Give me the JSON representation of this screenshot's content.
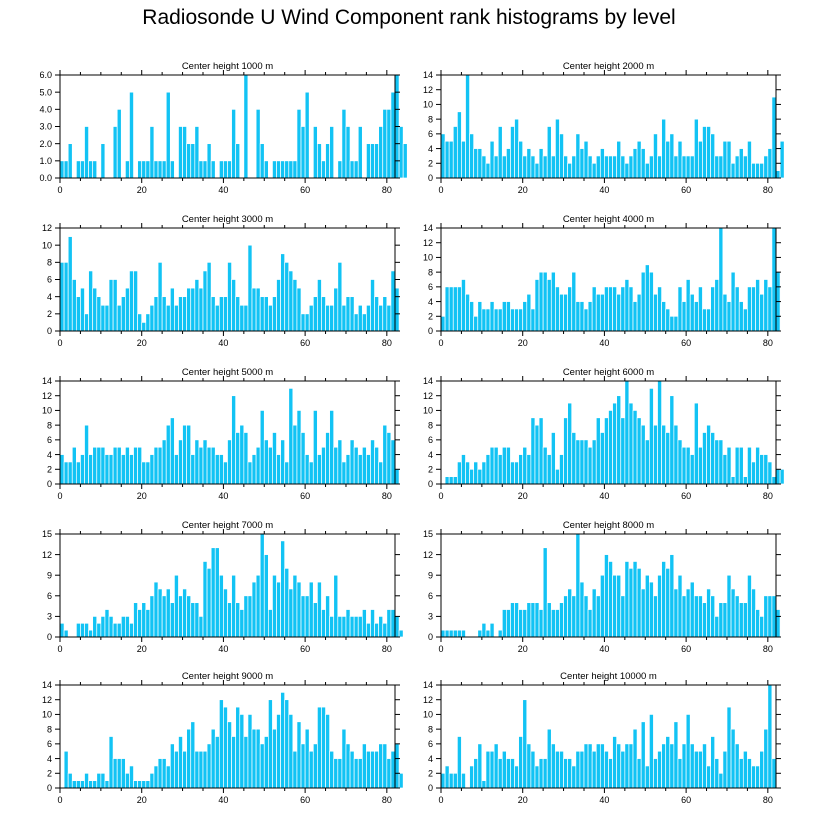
{
  "title": "Radiosonde U Wind Component rank histograms by level",
  "chart_data": [
    {
      "type": "bar",
      "title": "Center height 1000 m",
      "ylim": [
        0,
        6
      ],
      "yticks": [
        0,
        1,
        2,
        3,
        4,
        5,
        6
      ],
      "ytick_labels": [
        "0.0",
        "1.0",
        "2.0",
        "3.0",
        "4.0",
        "5.0",
        "6.0"
      ],
      "xlim": [
        0,
        82
      ],
      "xticks": [
        0,
        20,
        40,
        60,
        80
      ],
      "x_start": 0,
      "values": [
        1,
        1,
        2,
        0,
        1,
        1,
        3,
        1,
        1,
        0,
        2,
        0,
        0,
        3,
        4,
        0,
        1,
        5,
        0,
        1,
        1,
        1,
        3,
        1,
        1,
        1,
        5,
        1,
        0,
        3,
        3,
        2,
        2,
        3,
        1,
        1,
        2,
        1,
        0,
        1,
        1,
        1,
        4,
        2,
        0,
        6,
        0,
        0,
        4,
        2,
        1,
        0,
        1,
        1,
        1,
        1,
        1,
        1,
        4,
        3,
        5,
        0,
        3,
        2,
        1,
        2,
        3,
        0,
        1,
        4,
        3,
        1,
        1,
        3,
        0,
        2,
        2,
        2,
        3,
        4,
        4,
        5,
        6,
        3,
        2
      ]
    },
    {
      "type": "bar",
      "title": "Center height 2000 m",
      "ylim": [
        0,
        14
      ],
      "yticks": [
        0,
        2,
        4,
        6,
        8,
        10,
        12,
        14
      ],
      "ytick_labels": [
        "0",
        "2",
        "4",
        "6",
        "8",
        "10",
        "12",
        "14"
      ],
      "xlim": [
        0,
        82
      ],
      "xticks": [
        0,
        20,
        40,
        60,
        80
      ],
      "x_start": 0,
      "values": [
        6,
        5,
        5,
        7,
        9,
        5,
        14,
        6,
        4,
        4,
        3,
        2,
        5,
        3,
        7,
        3,
        4,
        7,
        8,
        5,
        3,
        4,
        3,
        2,
        4,
        3,
        7,
        3,
        8,
        6,
        3,
        2,
        3,
        6,
        4,
        5,
        3,
        2,
        3,
        4,
        3,
        3,
        3,
        5,
        3,
        2,
        3,
        4,
        5,
        4,
        2,
        3,
        6,
        3,
        8,
        5,
        6,
        3,
        5,
        3,
        3,
        3,
        8,
        5,
        7,
        7,
        6,
        3,
        3,
        5,
        5,
        2,
        3,
        4,
        3,
        5,
        2,
        2,
        2,
        3,
        4,
        11,
        1,
        5
      ]
    },
    {
      "type": "bar",
      "title": "Center height 3000 m",
      "ylim": [
        0,
        12
      ],
      "yticks": [
        0,
        2,
        4,
        6,
        8,
        10,
        12
      ],
      "ytick_labels": [
        "0",
        "2",
        "4",
        "6",
        "8",
        "10",
        "12"
      ],
      "xlim": [
        0,
        82
      ],
      "xticks": [
        0,
        20,
        40,
        60,
        80
      ],
      "x_start": 0,
      "values": [
        8,
        8,
        11,
        6,
        4,
        5,
        2,
        7,
        5,
        4,
        3,
        3,
        6,
        6,
        3,
        4,
        5,
        7,
        7,
        2,
        1,
        2,
        3,
        4,
        8,
        4,
        3,
        5,
        3,
        4,
        4,
        5,
        5,
        6,
        5,
        7,
        8,
        4,
        3,
        4,
        4,
        8,
        6,
        4,
        3,
        3,
        10,
        5,
        5,
        4,
        4,
        3,
        4,
        6,
        9,
        8,
        7,
        6,
        5,
        2,
        2,
        3,
        4,
        6,
        4,
        3,
        3,
        5,
        8,
        3,
        4,
        4,
        2,
        3,
        2,
        3,
        6,
        4,
        3,
        4,
        3,
        7,
        5
      ]
    },
    {
      "type": "bar",
      "title": "Center height 4000 m",
      "ylim": [
        0,
        14
      ],
      "yticks": [
        0,
        2,
        4,
        6,
        8,
        10,
        12,
        14
      ],
      "ytick_labels": [
        "0",
        "2",
        "4",
        "6",
        "8",
        "10",
        "12",
        "14"
      ],
      "xlim": [
        0,
        82
      ],
      "xticks": [
        0,
        20,
        40,
        60,
        80
      ],
      "x_start": 0,
      "values": [
        2,
        6,
        6,
        6,
        6,
        7,
        5,
        4,
        2,
        4,
        3,
        3,
        4,
        3,
        3,
        4,
        4,
        3,
        3,
        3,
        4,
        5,
        3,
        7,
        8,
        8,
        7,
        8,
        6,
        5,
        5,
        6,
        8,
        4,
        4,
        3,
        4,
        6,
        5,
        5,
        6,
        6,
        6,
        5,
        6,
        7,
        6,
        4,
        5,
        8,
        9,
        8,
        5,
        6,
        4,
        3,
        2,
        2,
        6,
        4,
        7,
        5,
        4,
        6,
        3,
        3,
        6,
        7,
        14,
        5,
        4,
        8,
        6,
        4,
        3,
        6,
        6,
        7,
        5,
        7,
        6,
        14,
        8
      ]
    },
    {
      "type": "bar",
      "title": "Center height 5000 m",
      "ylim": [
        0,
        14
      ],
      "yticks": [
        0,
        2,
        4,
        6,
        8,
        10,
        12,
        14
      ],
      "ytick_labels": [
        "0",
        "2",
        "4",
        "6",
        "8",
        "10",
        "12",
        "14"
      ],
      "xlim": [
        0,
        82
      ],
      "xticks": [
        0,
        20,
        40,
        60,
        80
      ],
      "x_start": 0,
      "values": [
        4,
        3,
        3,
        5,
        3,
        4,
        8,
        4,
        5,
        5,
        5,
        4,
        4,
        5,
        5,
        4,
        5,
        4,
        5,
        5,
        3,
        3,
        4,
        5,
        5,
        6,
        8,
        9,
        4,
        6,
        8,
        8,
        4,
        6,
        5,
        6,
        5,
        5,
        4,
        4,
        3,
        6,
        12,
        7,
        8,
        7,
        3,
        4,
        5,
        10,
        6,
        5,
        7,
        4,
        6,
        3,
        13,
        8,
        10,
        7,
        4,
        3,
        10,
        4,
        5,
        7,
        10,
        5,
        6,
        3,
        4,
        6,
        5,
        4,
        5,
        4,
        6,
        5,
        3,
        8,
        7,
        6,
        2
      ]
    },
    {
      "type": "bar",
      "title": "Center height 6000 m",
      "ylim": [
        0,
        14
      ],
      "yticks": [
        0,
        2,
        4,
        6,
        8,
        10,
        12,
        14
      ],
      "ytick_labels": [
        "0",
        "2",
        "4",
        "6",
        "8",
        "10",
        "12",
        "14"
      ],
      "xlim": [
        0,
        82
      ],
      "xticks": [
        0,
        20,
        40,
        60,
        80
      ],
      "x_start": 0,
      "values": [
        0,
        1,
        1,
        1,
        3,
        4,
        3,
        2,
        3,
        2,
        3,
        4,
        5,
        5,
        4,
        5,
        5,
        3,
        3,
        4,
        5,
        4,
        9,
        8,
        9,
        5,
        4,
        7,
        2,
        4,
        9,
        11,
        7,
        6,
        6,
        6,
        5,
        6,
        9,
        7,
        9,
        10,
        11,
        12,
        9,
        14,
        11,
        10,
        9,
        8,
        6,
        13,
        8,
        14,
        8,
        7,
        12,
        8,
        6,
        5,
        5,
        4,
        11,
        5,
        7,
        8,
        7,
        6,
        6,
        4,
        5,
        1,
        5,
        5,
        1,
        5,
        3,
        5,
        4,
        4,
        3,
        1,
        2,
        2
      ]
    },
    {
      "type": "bar",
      "title": "Center height 7000 m",
      "ylim": [
        0,
        15
      ],
      "yticks": [
        0,
        3,
        6,
        9,
        12,
        15
      ],
      "ytick_labels": [
        "0",
        "3",
        "6",
        "9",
        "12",
        "15"
      ],
      "xlim": [
        0,
        82
      ],
      "xticks": [
        0,
        20,
        40,
        60,
        80
      ],
      "x_start": 0,
      "values": [
        2,
        1,
        0,
        0,
        2,
        2,
        2,
        1,
        3,
        2,
        3,
        4,
        3,
        2,
        2,
        3,
        3,
        2,
        5,
        4,
        5,
        4,
        6,
        8,
        7,
        6,
        7,
        5,
        9,
        6,
        7,
        6,
        5,
        5,
        3,
        11,
        10,
        13,
        13,
        9,
        7,
        5,
        9,
        5,
        4,
        6,
        6,
        8,
        9,
        15,
        12,
        4,
        9,
        8,
        14,
        10,
        7,
        9,
        8,
        6,
        6,
        8,
        5,
        8,
        4,
        6,
        3,
        9,
        3,
        3,
        4,
        3,
        3,
        3,
        4,
        2,
        4,
        2,
        3,
        2,
        4,
        4,
        3,
        1
      ]
    },
    {
      "type": "bar",
      "title": "Center height 8000 m",
      "ylim": [
        0,
        15
      ],
      "yticks": [
        0,
        3,
        6,
        9,
        12,
        15
      ],
      "ytick_labels": [
        "0",
        "3",
        "6",
        "9",
        "12",
        "15"
      ],
      "xlim": [
        0,
        82
      ],
      "xticks": [
        0,
        20,
        40,
        60,
        80
      ],
      "x_start": 0,
      "values": [
        1,
        1,
        1,
        1,
        1,
        1,
        0,
        0,
        0,
        1,
        2,
        1,
        2,
        0,
        1,
        4,
        4,
        5,
        5,
        4,
        4,
        5,
        5,
        5,
        4,
        13,
        5,
        4,
        4,
        5,
        6,
        7,
        6,
        15,
        8,
        6,
        4,
        7,
        6,
        9,
        12,
        11,
        9,
        9,
        6,
        11,
        10,
        11,
        10,
        7,
        9,
        8,
        6,
        9,
        11,
        10,
        12,
        7,
        9,
        6,
        7,
        8,
        6,
        6,
        5,
        7,
        6,
        3,
        5,
        5,
        9,
        7,
        6,
        5,
        5,
        9,
        7,
        4,
        3,
        6,
        6,
        6,
        4
      ]
    },
    {
      "type": "bar",
      "title": "Center height 9000 m",
      "ylim": [
        0,
        14
      ],
      "yticks": [
        0,
        2,
        4,
        6,
        8,
        10,
        12,
        14
      ],
      "ytick_labels": [
        "0",
        "2",
        "4",
        "6",
        "8",
        "10",
        "12",
        "14"
      ],
      "xlim": [
        0,
        82
      ],
      "xticks": [
        0,
        20,
        40,
        60,
        80
      ],
      "x_start": 0,
      "values": [
        0,
        5,
        2,
        1,
        1,
        1,
        2,
        1,
        1,
        2,
        2,
        1,
        7,
        4,
        4,
        4,
        2,
        3,
        1,
        1,
        1,
        1,
        2,
        3,
        4,
        4,
        3,
        6,
        5,
        7,
        5,
        8,
        9,
        5,
        5,
        5,
        6,
        8,
        7,
        12,
        11,
        9,
        7,
        11,
        10,
        7,
        10,
        8,
        8,
        6,
        7,
        12,
        8,
        10,
        13,
        12,
        10,
        5,
        9,
        6,
        8,
        5,
        6,
        11,
        11,
        10,
        5,
        4,
        4,
        8,
        6,
        5,
        4,
        4,
        6,
        5,
        5,
        5,
        6,
        6,
        4,
        5,
        6,
        2
      ]
    },
    {
      "type": "bar",
      "title": "Center height 10000 m",
      "ylim": [
        0,
        14
      ],
      "yticks": [
        0,
        2,
        4,
        6,
        8,
        10,
        12,
        14
      ],
      "ytick_labels": [
        "0",
        "2",
        "4",
        "6",
        "8",
        "10",
        "12",
        "14"
      ],
      "xlim": [
        0,
        82
      ],
      "xticks": [
        0,
        20,
        40,
        60,
        80
      ],
      "x_start": 0,
      "values": [
        2,
        3,
        2,
        2,
        7,
        2,
        0,
        3,
        4,
        6,
        1,
        5,
        5,
        6,
        4,
        5,
        4,
        4,
        3,
        7,
        12,
        6,
        5,
        3,
        4,
        4,
        8,
        6,
        5,
        5,
        4,
        4,
        3,
        5,
        5,
        6,
        6,
        5,
        6,
        6,
        5,
        4,
        7,
        6,
        5,
        6,
        6,
        8,
        4,
        9,
        3,
        10,
        4,
        5,
        6,
        7,
        6,
        9,
        4,
        6,
        10,
        6,
        5,
        5,
        6,
        3,
        7,
        4,
        2,
        5,
        11,
        8,
        6,
        4,
        5,
        4,
        3,
        3,
        5,
        8,
        14,
        4
      ]
    }
  ]
}
